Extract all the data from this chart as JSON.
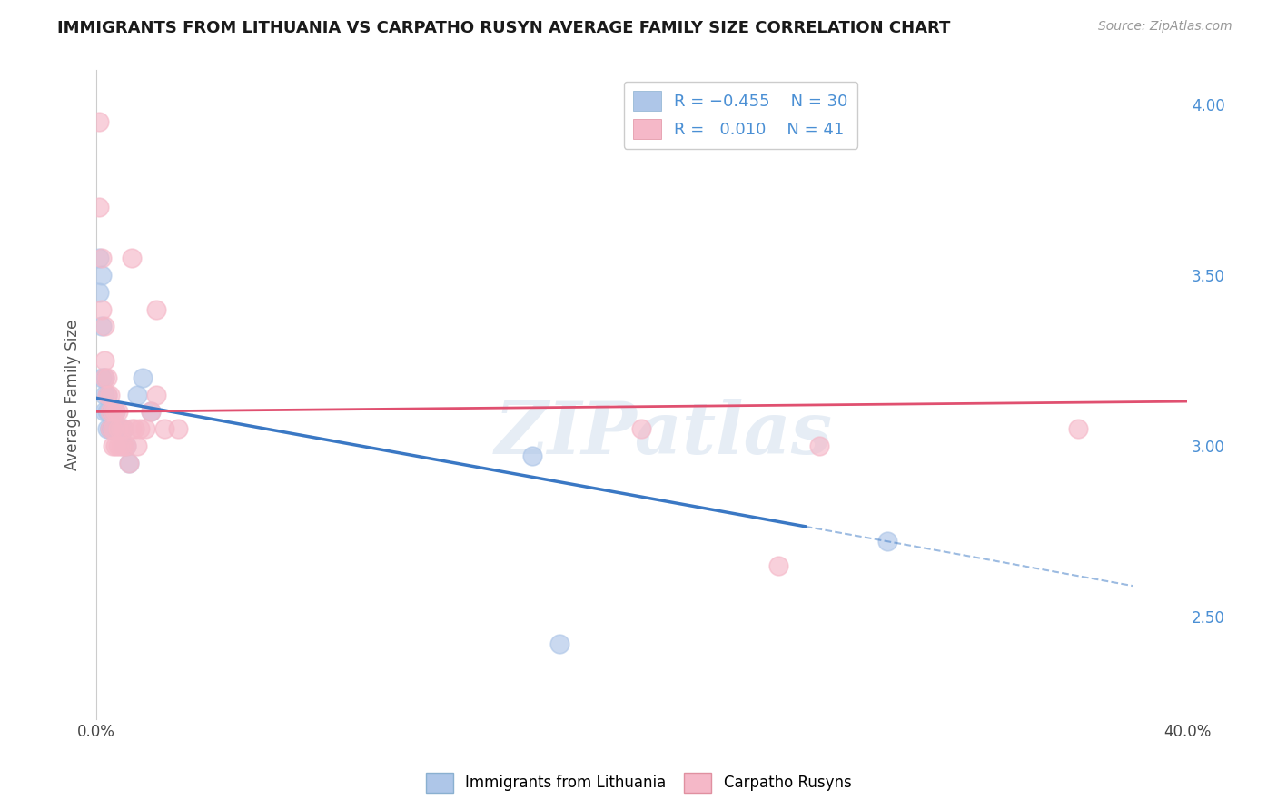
{
  "title": "IMMIGRANTS FROM LITHUANIA VS CARPATHO RUSYN AVERAGE FAMILY SIZE CORRELATION CHART",
  "source": "Source: ZipAtlas.com",
  "ylabel": "Average Family Size",
  "xlim": [
    0.0,
    0.4
  ],
  "ylim": [
    2.2,
    4.1
  ],
  "yticks_right": [
    2.5,
    3.0,
    3.5,
    4.0
  ],
  "xticks": [
    0.0,
    0.1,
    0.2,
    0.3,
    0.4
  ],
  "xtick_labels": [
    "0.0%",
    "",
    "",
    "",
    "40.0%"
  ],
  "blue_color": "#aec6e8",
  "pink_color": "#f5b8c8",
  "blue_line_color": "#3a78c4",
  "pink_line_color": "#e05070",
  "watermark": "ZIPatlas",
  "background_color": "#ffffff",
  "grid_color": "#bbbbbb",
  "blue_line_x0": 0.0,
  "blue_line_y0": 3.14,
  "blue_line_x1": 0.38,
  "blue_line_y1": 2.59,
  "blue_line_solid_x1": 0.26,
  "pink_line_x0": 0.0,
  "pink_line_y0": 3.1,
  "pink_line_x1": 0.4,
  "pink_line_y1": 3.13,
  "blue_scatter_x": [
    0.001,
    0.001,
    0.002,
    0.002,
    0.002,
    0.003,
    0.003,
    0.003,
    0.004,
    0.004,
    0.004,
    0.005,
    0.005,
    0.005,
    0.006,
    0.006,
    0.007,
    0.007,
    0.008,
    0.009,
    0.01,
    0.01,
    0.011,
    0.012,
    0.015,
    0.017,
    0.02,
    0.16,
    0.29,
    0.17
  ],
  "blue_scatter_y": [
    3.55,
    3.45,
    3.5,
    3.35,
    3.2,
    3.2,
    3.15,
    3.1,
    3.15,
    3.1,
    3.05,
    3.1,
    3.05,
    3.05,
    3.05,
    3.05,
    3.1,
    3.05,
    3.05,
    3.05,
    3.05,
    3.0,
    3.0,
    2.95,
    3.15,
    3.2,
    3.1,
    2.97,
    2.72,
    2.42
  ],
  "pink_scatter_x": [
    0.001,
    0.001,
    0.002,
    0.002,
    0.003,
    0.003,
    0.003,
    0.004,
    0.004,
    0.005,
    0.005,
    0.005,
    0.006,
    0.006,
    0.006,
    0.007,
    0.007,
    0.008,
    0.008,
    0.008,
    0.009,
    0.009,
    0.01,
    0.01,
    0.011,
    0.012,
    0.013,
    0.014,
    0.015,
    0.016,
    0.018,
    0.02,
    0.022,
    0.025,
    0.03,
    0.022,
    0.013,
    0.36,
    0.2,
    0.25,
    0.265
  ],
  "pink_scatter_y": [
    3.95,
    3.7,
    3.55,
    3.4,
    3.35,
    3.25,
    3.2,
    3.2,
    3.15,
    3.15,
    3.1,
    3.05,
    3.1,
    3.05,
    3.0,
    3.1,
    3.0,
    3.1,
    3.05,
    3.0,
    3.05,
    3.0,
    3.05,
    3.0,
    3.0,
    2.95,
    3.05,
    3.05,
    3.0,
    3.05,
    3.05,
    3.1,
    3.15,
    3.05,
    3.05,
    3.4,
    3.55,
    3.05,
    3.05,
    2.65,
    3.0
  ]
}
